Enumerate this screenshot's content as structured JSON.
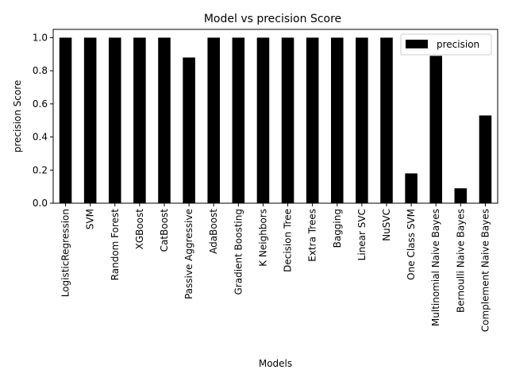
{
  "chart_data": {
    "type": "bar",
    "title": "Model vs precision Score",
    "xlabel": "Models",
    "ylabel": "precision Score",
    "ylim": [
      0,
      1.05
    ],
    "yticks": [
      0.0,
      0.2,
      0.4,
      0.6,
      0.8,
      1.0
    ],
    "ytick_labels": [
      "0.0",
      "0.2",
      "0.4",
      "0.6",
      "0.8",
      "1.0"
    ],
    "grid": false,
    "legend_position": "top-right",
    "bar_color": "#000000",
    "categories": [
      "LogisticRegression",
      "SVM",
      "Random Forest",
      "XGBoost",
      "CatBoost",
      "Passive Aggressive",
      "AdaBoost",
      "Gradient Boosting",
      "K Neighbors",
      "Decision Tree",
      "Extra Trees",
      "Bagging",
      "Linear SVC",
      "NuSVC",
      "One Class SVM",
      "Multinomial Naive Bayes",
      "Bernoulli Naive Bayes",
      "Complement Naive Bayes"
    ],
    "series": [
      {
        "name": "precision",
        "values": [
          1.0,
          1.0,
          1.0,
          1.0,
          1.0,
          0.88,
          1.0,
          1.0,
          1.0,
          1.0,
          1.0,
          1.0,
          1.0,
          1.0,
          0.18,
          0.89,
          0.09,
          0.53
        ]
      }
    ]
  }
}
